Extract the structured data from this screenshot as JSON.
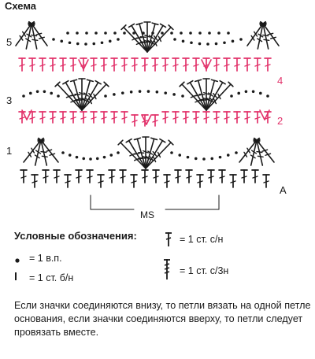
{
  "title": "Схема",
  "row_labels": {
    "r1": "1",
    "r2": "2",
    "r3": "3",
    "r4": "4",
    "r5": "5",
    "a": "A"
  },
  "repeat_label": "MS",
  "colors": {
    "black": "#1a1a1a",
    "red": "#e2336b"
  },
  "legend": {
    "title": "Условные обозначения:",
    "items": [
      {
        "icon": "dot-chain-icon",
        "text": "= 1 в.п."
      },
      {
        "icon": "single-crochet-icon",
        "text": "= 1 ст. б/н"
      },
      {
        "icon": "double-crochet-icon",
        "text": "= 1 ст. с/н"
      },
      {
        "icon": "treble3-crochet-icon",
        "text": "= 1 ст. с/3н"
      }
    ]
  },
  "note": "Если значки соединяются внизу, то петли вязать на одной петле основания, если значки соединяются вверху, то петли следует провязать вместе."
}
